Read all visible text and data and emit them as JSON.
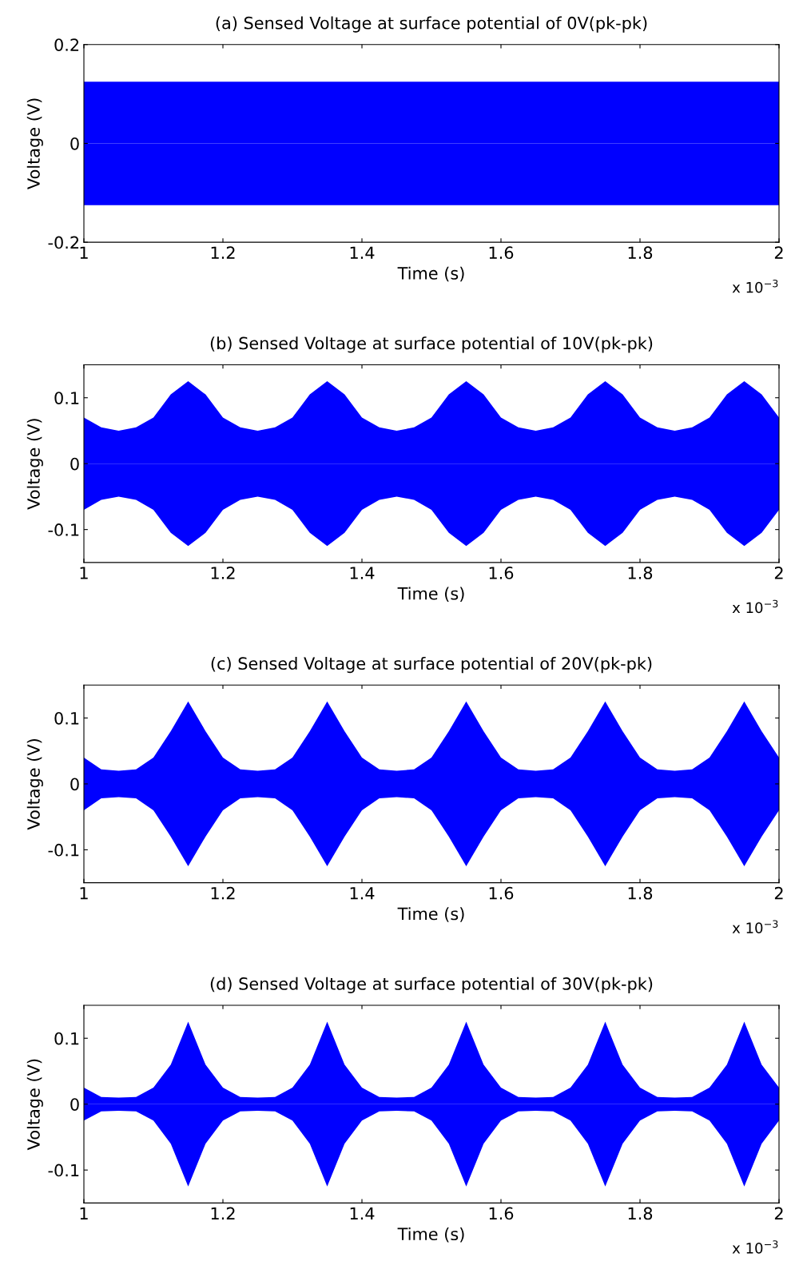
{
  "chart_data": [
    {
      "type": "area",
      "title": "(a) Sensed Voltage at surface potential of 0V(pk-pk)",
      "xlabel": "Time (s)",
      "ylabel": "Voltage (V)",
      "annotations": [
        "x 10$^{−3}$"
      ],
      "xlim": [
        1,
        2
      ],
      "xticks": [
        1,
        1.2,
        1.4,
        1.6,
        1.8,
        2
      ],
      "ylim": [
        -0.2,
        0.2
      ],
      "yticks": [
        -0.2,
        0,
        0.2
      ],
      "grid": false,
      "legend": false,
      "series": [
        {
          "color": "#0000ff",
          "x": [
            1,
            2
          ],
          "values": [
            0.125,
            0.125
          ]
        },
        {
          "color": "#0000ff",
          "x": [
            1,
            2
          ],
          "values": [
            -0.125,
            -0.125
          ]
        }
      ]
    },
    {
      "type": "area",
      "title": "(b) Sensed Voltage at surface potential of 10V(pk-pk)",
      "xlabel": "Time (s)",
      "ylabel": "Voltage (V)",
      "annotations": [
        "x 10$^{−3}$"
      ],
      "xlim": [
        1,
        2
      ],
      "xticks": [
        1,
        1.2,
        1.4,
        1.6,
        1.8,
        2
      ],
      "ylim": [
        -0.15,
        0.15
      ],
      "yticks": [
        -0.1,
        0,
        0.1
      ],
      "grid": false,
      "legend": false,
      "series": [
        {
          "color": "#0000ff",
          "x": [
            1.0,
            1.025,
            1.05,
            1.075,
            1.1,
            1.125,
            1.15,
            1.175,
            1.2,
            1.225,
            1.25,
            1.275,
            1.3,
            1.325,
            1.35,
            1.375,
            1.4,
            1.425,
            1.45,
            1.475,
            1.5,
            1.525,
            1.55,
            1.575,
            1.6,
            1.625,
            1.65,
            1.675,
            1.7,
            1.725,
            1.75,
            1.775,
            1.8,
            1.825,
            1.85,
            1.875,
            1.9,
            1.925,
            1.95,
            1.975,
            2.0
          ],
          "values": [
            0.07,
            0.055,
            0.05,
            0.055,
            0.07,
            0.105,
            0.125,
            0.105,
            0.07,
            0.055,
            0.05,
            0.055,
            0.07,
            0.105,
            0.125,
            0.105,
            0.07,
            0.055,
            0.05,
            0.055,
            0.07,
            0.105,
            0.125,
            0.105,
            0.07,
            0.055,
            0.05,
            0.055,
            0.07,
            0.105,
            0.125,
            0.105,
            0.07,
            0.055,
            0.05,
            0.055,
            0.07,
            0.105,
            0.125,
            0.105,
            0.07
          ]
        },
        {
          "color": "#0000ff",
          "x": [
            1.0,
            1.025,
            1.05,
            1.075,
            1.1,
            1.125,
            1.15,
            1.175,
            1.2,
            1.225,
            1.25,
            1.275,
            1.3,
            1.325,
            1.35,
            1.375,
            1.4,
            1.425,
            1.45,
            1.475,
            1.5,
            1.525,
            1.55,
            1.575,
            1.6,
            1.625,
            1.65,
            1.675,
            1.7,
            1.725,
            1.75,
            1.775,
            1.8,
            1.825,
            1.85,
            1.875,
            1.9,
            1.925,
            1.95,
            1.975,
            2.0
          ],
          "values": [
            -0.07,
            -0.055,
            -0.05,
            -0.055,
            -0.07,
            -0.105,
            -0.125,
            -0.105,
            -0.07,
            -0.055,
            -0.05,
            -0.055,
            -0.07,
            -0.105,
            -0.125,
            -0.105,
            -0.07,
            -0.055,
            -0.05,
            -0.055,
            -0.07,
            -0.105,
            -0.125,
            -0.105,
            -0.07,
            -0.055,
            -0.05,
            -0.055,
            -0.07,
            -0.105,
            -0.125,
            -0.105,
            -0.07,
            -0.055,
            -0.05,
            -0.055,
            -0.07,
            -0.105,
            -0.125,
            -0.105,
            -0.07
          ]
        }
      ]
    },
    {
      "type": "area",
      "title": "(c) Sensed Voltage at surface potential of 20V(pk-pk)",
      "xlabel": "Time (s)",
      "ylabel": "Voltage (V)",
      "annotations": [
        "x 10$^{−3}$"
      ],
      "xlim": [
        1,
        2
      ],
      "xticks": [
        1,
        1.2,
        1.4,
        1.6,
        1.8,
        2
      ],
      "ylim": [
        -0.15,
        0.15
      ],
      "yticks": [
        -0.1,
        0,
        0.1
      ],
      "grid": false,
      "legend": false,
      "series": [
        {
          "color": "#0000ff",
          "x": [
            1.0,
            1.025,
            1.05,
            1.075,
            1.1,
            1.125,
            1.15,
            1.175,
            1.2,
            1.225,
            1.25,
            1.275,
            1.3,
            1.325,
            1.35,
            1.375,
            1.4,
            1.425,
            1.45,
            1.475,
            1.5,
            1.525,
            1.55,
            1.575,
            1.6,
            1.625,
            1.65,
            1.675,
            1.7,
            1.725,
            1.75,
            1.775,
            1.8,
            1.825,
            1.85,
            1.875,
            1.9,
            1.925,
            1.95,
            1.975,
            2.0
          ],
          "values": [
            0.04,
            0.022,
            0.02,
            0.022,
            0.04,
            0.08,
            0.125,
            0.08,
            0.04,
            0.022,
            0.02,
            0.022,
            0.04,
            0.08,
            0.125,
            0.08,
            0.04,
            0.022,
            0.02,
            0.022,
            0.04,
            0.08,
            0.125,
            0.08,
            0.04,
            0.022,
            0.02,
            0.022,
            0.04,
            0.08,
            0.125,
            0.08,
            0.04,
            0.022,
            0.02,
            0.022,
            0.04,
            0.08,
            0.125,
            0.08,
            0.04
          ]
        },
        {
          "color": "#0000ff",
          "x": [
            1.0,
            1.025,
            1.05,
            1.075,
            1.1,
            1.125,
            1.15,
            1.175,
            1.2,
            1.225,
            1.25,
            1.275,
            1.3,
            1.325,
            1.35,
            1.375,
            1.4,
            1.425,
            1.45,
            1.475,
            1.5,
            1.525,
            1.55,
            1.575,
            1.6,
            1.625,
            1.65,
            1.675,
            1.7,
            1.725,
            1.75,
            1.775,
            1.8,
            1.825,
            1.85,
            1.875,
            1.9,
            1.925,
            1.95,
            1.975,
            2.0
          ],
          "values": [
            -0.04,
            -0.022,
            -0.02,
            -0.022,
            -0.04,
            -0.08,
            -0.125,
            -0.08,
            -0.04,
            -0.022,
            -0.02,
            -0.022,
            -0.04,
            -0.08,
            -0.125,
            -0.08,
            -0.04,
            -0.022,
            -0.02,
            -0.022,
            -0.04,
            -0.08,
            -0.125,
            -0.08,
            -0.04,
            -0.022,
            -0.02,
            -0.022,
            -0.04,
            -0.08,
            -0.125,
            -0.08,
            -0.04,
            -0.022,
            -0.02,
            -0.022,
            -0.04,
            -0.08,
            -0.125,
            -0.08,
            -0.04
          ]
        }
      ]
    },
    {
      "type": "area",
      "title": "(d) Sensed Voltage at surface potential of 30V(pk-pk)",
      "xlabel": "Time (s)",
      "ylabel": "Voltage (V)",
      "annotations": [
        "x 10$^{−3}$"
      ],
      "xlim": [
        1,
        2
      ],
      "xticks": [
        1,
        1.2,
        1.4,
        1.6,
        1.8,
        2
      ],
      "ylim": [
        -0.15,
        0.15
      ],
      "yticks": [
        -0.1,
        0,
        0.1
      ],
      "grid": false,
      "legend": false,
      "series": [
        {
          "color": "#0000ff",
          "x": [
            1.0,
            1.025,
            1.05,
            1.075,
            1.1,
            1.125,
            1.15,
            1.175,
            1.2,
            1.225,
            1.25,
            1.275,
            1.3,
            1.325,
            1.35,
            1.375,
            1.4,
            1.425,
            1.45,
            1.475,
            1.5,
            1.525,
            1.55,
            1.575,
            1.6,
            1.625,
            1.65,
            1.675,
            1.7,
            1.725,
            1.75,
            1.775,
            1.8,
            1.825,
            1.85,
            1.875,
            1.9,
            1.925,
            1.95,
            1.975,
            2.0
          ],
          "values": [
            0.025,
            0.011,
            0.01,
            0.011,
            0.025,
            0.06,
            0.125,
            0.06,
            0.025,
            0.011,
            0.01,
            0.011,
            0.025,
            0.06,
            0.125,
            0.06,
            0.025,
            0.011,
            0.01,
            0.011,
            0.025,
            0.06,
            0.125,
            0.06,
            0.025,
            0.011,
            0.01,
            0.011,
            0.025,
            0.06,
            0.125,
            0.06,
            0.025,
            0.011,
            0.01,
            0.011,
            0.025,
            0.06,
            0.125,
            0.06,
            0.025
          ]
        },
        {
          "color": "#0000ff",
          "x": [
            1.0,
            1.025,
            1.05,
            1.075,
            1.1,
            1.125,
            1.15,
            1.175,
            1.2,
            1.225,
            1.25,
            1.275,
            1.3,
            1.325,
            1.35,
            1.375,
            1.4,
            1.425,
            1.45,
            1.475,
            1.5,
            1.525,
            1.55,
            1.575,
            1.6,
            1.625,
            1.65,
            1.675,
            1.7,
            1.725,
            1.75,
            1.775,
            1.8,
            1.825,
            1.85,
            1.875,
            1.9,
            1.925,
            1.95,
            1.975,
            2.0
          ],
          "values": [
            -0.025,
            -0.011,
            -0.01,
            -0.011,
            -0.025,
            -0.06,
            -0.125,
            -0.06,
            -0.025,
            -0.011,
            -0.01,
            -0.011,
            -0.025,
            -0.06,
            -0.125,
            -0.06,
            -0.025,
            -0.011,
            -0.01,
            -0.011,
            -0.025,
            -0.06,
            -0.125,
            -0.06,
            -0.025,
            -0.011,
            -0.01,
            -0.011,
            -0.025,
            -0.06,
            -0.125,
            -0.06,
            -0.025,
            -0.011,
            -0.01,
            -0.011,
            -0.025,
            -0.06,
            -0.125,
            -0.06,
            -0.025
          ]
        }
      ]
    }
  ]
}
